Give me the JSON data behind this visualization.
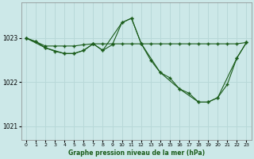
{
  "title": "Graphe pression niveau de la mer (hPa)",
  "bg_color": "#cce8e8",
  "grid_color": "#b8d8d8",
  "line_color": "#1a5c1a",
  "xlim": [
    -0.5,
    23.5
  ],
  "ylim": [
    1020.7,
    1023.8
  ],
  "yticks": [
    1021,
    1022,
    1023
  ],
  "xticks": [
    0,
    1,
    2,
    3,
    4,
    5,
    6,
    7,
    8,
    9,
    10,
    11,
    12,
    13,
    14,
    15,
    16,
    17,
    18,
    19,
    20,
    21,
    22,
    23
  ],
  "series1_flat": {
    "x": [
      0,
      1,
      2,
      3,
      4,
      5,
      6,
      7,
      8,
      9,
      10,
      11,
      12,
      13,
      14,
      15,
      16,
      17,
      18,
      19,
      20,
      21,
      22,
      23
    ],
    "y": [
      1023.0,
      1022.92,
      1022.82,
      1022.82,
      1022.82,
      1022.82,
      1022.85,
      1022.87,
      1022.87,
      1022.87,
      1022.87,
      1022.87,
      1022.87,
      1022.87,
      1022.87,
      1022.87,
      1022.87,
      1022.87,
      1022.87,
      1022.87,
      1022.87,
      1022.87,
      1022.87,
      1022.9
    ]
  },
  "series2_peak": {
    "x": [
      0,
      1,
      2,
      3,
      4,
      5,
      6,
      7,
      8,
      9,
      10,
      11,
      12,
      13,
      14,
      15,
      16,
      17,
      18,
      19,
      20,
      21,
      22,
      23
    ],
    "y": [
      1023.0,
      1022.92,
      1022.78,
      1022.7,
      1022.65,
      1022.65,
      1022.72,
      1022.87,
      1022.72,
      1022.85,
      1023.35,
      1023.45,
      1022.88,
      1022.5,
      1022.22,
      1022.1,
      1021.85,
      1021.75,
      1021.55,
      1021.55,
      1021.65,
      1021.95,
      1022.55,
      1022.9
    ]
  },
  "series3_diag": {
    "x": [
      0,
      2,
      4,
      5,
      6,
      7,
      8,
      10,
      11,
      12,
      14,
      16,
      18,
      19,
      20,
      22,
      23
    ],
    "y": [
      1023.0,
      1022.78,
      1022.65,
      1022.65,
      1022.72,
      1022.87,
      1022.72,
      1023.35,
      1023.45,
      1022.88,
      1022.22,
      1021.85,
      1021.55,
      1021.55,
      1021.65,
      1022.55,
      1022.9
    ]
  }
}
